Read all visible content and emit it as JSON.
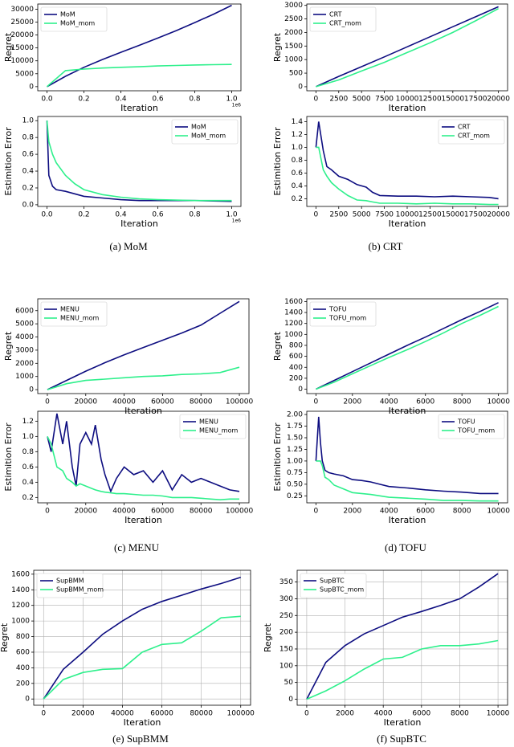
{
  "captions": [
    "(a) MoM",
    "(b) CRT",
    "(c) MENU",
    "(d) TOFU",
    "(e) SupBMM",
    "(f) SupBTC"
  ],
  "chart_data": [
    {
      "type": "line",
      "ylabel": "Regret",
      "xlabel": "Iteration",
      "x_offset_label": "1e6",
      "legend": "upper left",
      "grid": false,
      "x": [
        0,
        0.1,
        0.2,
        0.3,
        0.4,
        0.5,
        0.6,
        0.7,
        0.8,
        0.9,
        1.0
      ],
      "series": [
        {
          "name": "MoM",
          "color": "#0d0d80",
          "values": [
            0,
            4000,
            7500,
            10500,
            13300,
            16000,
            18800,
            21700,
            24800,
            28000,
            31500
          ]
        },
        {
          "name": "MoM_mom",
          "color": "#2ef08c",
          "values": [
            0,
            6200,
            6800,
            7200,
            7500,
            7700,
            8000,
            8200,
            8400,
            8500,
            8600
          ]
        }
      ],
      "xlim": [
        -0.05,
        1.05
      ],
      "xticks": [
        {
          "value": 0,
          "label": "0.0"
        },
        0.2,
        0.4,
        0.6,
        0.8,
        {
          "value": 1,
          "label": "1.0"
        }
      ],
      "ylim": [
        -1600,
        32000
      ],
      "yticks": [
        0,
        5000,
        10000,
        15000,
        20000,
        25000,
        30000
      ]
    },
    {
      "type": "line",
      "ylabel": "Estimition Error",
      "xlabel": "Iteration",
      "x_offset_label": "1e6",
      "legend": "upper right",
      "grid": false,
      "x": [
        0,
        0.01,
        0.03,
        0.05,
        0.1,
        0.15,
        0.2,
        0.3,
        0.4,
        0.5,
        0.6,
        0.8,
        1.0
      ],
      "series": [
        {
          "name": "MoM",
          "color": "#0d0d80",
          "values": [
            1.0,
            0.35,
            0.22,
            0.18,
            0.16,
            0.13,
            0.1,
            0.08,
            0.06,
            0.05,
            0.05,
            0.05,
            0.04
          ]
        },
        {
          "name": "MoM_mom",
          "color": "#2ef08c",
          "values": [
            1.0,
            0.75,
            0.6,
            0.5,
            0.35,
            0.25,
            0.18,
            0.12,
            0.09,
            0.07,
            0.06,
            0.05,
            0.05
          ]
        }
      ],
      "xlim": [
        -0.05,
        1.05
      ],
      "xticks": [
        {
          "value": 0,
          "label": "0.0"
        },
        0.2,
        0.4,
        0.6,
        0.8,
        {
          "value": 1,
          "label": "1.0"
        }
      ],
      "ylim": [
        -0.02,
        1.05
      ],
      "yticks": [
        {
          "value": 0,
          "label": "0.0"
        },
        0.2,
        0.4,
        0.6,
        0.8,
        {
          "value": 1,
          "label": "1.0"
        }
      ]
    },
    {
      "type": "line",
      "ylabel": "Regret",
      "xlabel": "Iteration",
      "legend": "upper left",
      "grid": false,
      "x": [
        0,
        2500,
        5000,
        7500,
        10000,
        12500,
        15000,
        17500,
        20000
      ],
      "series": [
        {
          "name": "CRT",
          "color": "#0d0d80",
          "values": [
            0,
            380,
            740,
            1100,
            1470,
            1840,
            2210,
            2580,
            2950
          ]
        },
        {
          "name": "CRT_mom",
          "color": "#2ef08c",
          "values": [
            0,
            250,
            580,
            900,
            1260,
            1620,
            2000,
            2430,
            2880
          ]
        }
      ],
      "xlim": [
        -1000,
        21000
      ],
      "xticks": [
        0,
        2500,
        5000,
        7500,
        10000,
        12500,
        15000,
        17500,
        20000
      ],
      "ylim": [
        -150,
        3050
      ],
      "yticks": [
        0,
        500,
        1000,
        1500,
        2000,
        2500,
        3000
      ]
    },
    {
      "type": "line",
      "ylabel": "Estimition Error",
      "xlabel": "Iteration",
      "legend": "upper right",
      "grid": false,
      "x": [
        0,
        300,
        800,
        1200,
        1700,
        2500,
        3500,
        4500,
        5500,
        6200,
        7000,
        9000,
        11000,
        13000,
        15000,
        17000,
        19000,
        20000
      ],
      "series": [
        {
          "name": "CRT",
          "color": "#0d0d80",
          "values": [
            1.0,
            1.4,
            0.95,
            0.7,
            0.65,
            0.55,
            0.5,
            0.42,
            0.38,
            0.3,
            0.25,
            0.24,
            0.24,
            0.23,
            0.24,
            0.23,
            0.22,
            0.2
          ]
        },
        {
          "name": "CRT_mom",
          "color": "#2ef08c",
          "values": [
            1.0,
            1.0,
            0.65,
            0.55,
            0.45,
            0.35,
            0.25,
            0.18,
            0.17,
            0.15,
            0.13,
            0.13,
            0.12,
            0.13,
            0.12,
            0.12,
            0.11,
            0.11
          ]
        }
      ],
      "xlim": [
        -1000,
        21000
      ],
      "xticks": [
        0,
        2500,
        5000,
        7500,
        10000,
        12500,
        15000,
        17500,
        20000
      ],
      "ylim": [
        0.08,
        1.48
      ],
      "yticks": [
        0.2,
        0.4,
        0.6,
        0.8,
        {
          "value": 1,
          "label": "1.0"
        },
        1.2,
        1.4
      ]
    },
    {
      "type": "line",
      "ylabel": "Regret",
      "xlabel": "Iteration",
      "legend": "upper left",
      "grid": false,
      "x": [
        0,
        10000,
        20000,
        30000,
        40000,
        50000,
        60000,
        70000,
        80000,
        90000,
        100000
      ],
      "series": [
        {
          "name": "MENU",
          "color": "#0d0d80",
          "values": [
            0,
            700,
            1400,
            2050,
            2650,
            3200,
            3750,
            4300,
            4900,
            5800,
            6700
          ]
        },
        {
          "name": "MENU_mom",
          "color": "#2ef08c",
          "values": [
            0,
            450,
            700,
            800,
            900,
            1000,
            1050,
            1150,
            1200,
            1300,
            1700
          ]
        }
      ],
      "xlim": [
        -5000,
        105000
      ],
      "xticks": [
        0,
        20000,
        40000,
        60000,
        80000,
        100000
      ],
      "ylim": [
        -300,
        6900
      ],
      "yticks": [
        0,
        1000,
        2000,
        3000,
        4000,
        5000,
        6000
      ]
    },
    {
      "type": "line",
      "ylabel": "Estimition Error",
      "xlabel": "Iteration",
      "legend": "upper right",
      "grid": false,
      "x": [
        0,
        2000,
        5000,
        8000,
        10000,
        13000,
        15000,
        17000,
        20000,
        23000,
        25000,
        28000,
        30000,
        33000,
        36000,
        40000,
        45000,
        50000,
        55000,
        60000,
        65000,
        70000,
        75000,
        80000,
        85000,
        90000,
        95000,
        100000
      ],
      "series": [
        {
          "name": "MENU",
          "color": "#0d0d80",
          "values": [
            1.0,
            0.8,
            1.3,
            0.9,
            1.2,
            0.6,
            0.35,
            0.9,
            1.05,
            0.9,
            1.15,
            0.7,
            0.5,
            0.28,
            0.45,
            0.6,
            0.5,
            0.55,
            0.4,
            0.55,
            0.3,
            0.5,
            0.4,
            0.45,
            0.4,
            0.35,
            0.3,
            0.28
          ]
        },
        {
          "name": "MENU_mom",
          "color": "#2ef08c",
          "values": [
            1.0,
            0.9,
            0.6,
            0.55,
            0.45,
            0.4,
            0.35,
            0.38,
            0.35,
            0.32,
            0.3,
            0.28,
            0.27,
            0.26,
            0.25,
            0.25,
            0.24,
            0.23,
            0.23,
            0.22,
            0.2,
            0.2,
            0.2,
            0.19,
            0.18,
            0.17,
            0.18,
            0.18
          ]
        }
      ],
      "xlim": [
        -5000,
        105000
      ],
      "xticks": [
        0,
        20000,
        40000,
        60000,
        80000,
        100000
      ],
      "ylim": [
        0.13,
        1.33
      ],
      "yticks": [
        0.2,
        0.4,
        0.6,
        0.8,
        {
          "value": 1,
          "label": "1.0"
        },
        1.2
      ]
    },
    {
      "type": "line",
      "ylabel": "Regret",
      "xlabel": "Iteration",
      "legend": "upper left",
      "grid": false,
      "x": [
        0,
        1000,
        2000,
        3000,
        4000,
        5000,
        6000,
        7000,
        8000,
        9000,
        10000
      ],
      "series": [
        {
          "name": "TOFU",
          "color": "#0d0d80",
          "values": [
            0,
            160,
            320,
            480,
            640,
            800,
            950,
            1110,
            1270,
            1420,
            1580
          ]
        },
        {
          "name": "TOFU_mom",
          "color": "#2ef08c",
          "values": [
            0,
            130,
            280,
            430,
            580,
            720,
            870,
            1030,
            1200,
            1350,
            1510
          ]
        }
      ],
      "xlim": [
        -500,
        10500
      ],
      "xticks": [
        0,
        2000,
        4000,
        6000,
        8000,
        10000
      ],
      "ylim": [
        -80,
        1650
      ],
      "yticks": [
        0,
        200,
        400,
        600,
        800,
        1000,
        1200,
        1400,
        1600
      ]
    },
    {
      "type": "line",
      "ylabel": "Estimition Error",
      "xlabel": "Iteration",
      "legend": "upper right",
      "grid": false,
      "x": [
        0,
        150,
        250,
        350,
        500,
        700,
        1000,
        1500,
        2000,
        2500,
        3000,
        3500,
        4000,
        5000,
        6000,
        7000,
        8000,
        9000,
        10000
      ],
      "series": [
        {
          "name": "TOFU",
          "color": "#0d0d80",
          "values": [
            1.0,
            1.95,
            1.4,
            1.0,
            0.8,
            0.75,
            0.72,
            0.68,
            0.6,
            0.58,
            0.55,
            0.5,
            0.45,
            0.42,
            0.38,
            0.35,
            0.33,
            0.3,
            0.3
          ]
        },
        {
          "name": "TOFU_mom",
          "color": "#2ef08c",
          "values": [
            1.0,
            1.0,
            1.0,
            0.9,
            0.65,
            0.6,
            0.48,
            0.4,
            0.32,
            0.3,
            0.28,
            0.25,
            0.22,
            0.2,
            0.18,
            0.15,
            0.15,
            0.14,
            0.14
          ]
        }
      ],
      "xlim": [
        -500,
        10500
      ],
      "xticks": [
        0,
        2000,
        4000,
        6000,
        8000,
        10000
      ],
      "ylim": [
        0.1,
        2.07
      ],
      "yticks": [
        0.25,
        {
          "value": 0.5,
          "label": "0.50"
        },
        0.75,
        {
          "value": 1,
          "label": "1.00"
        },
        1.25,
        {
          "value": 1.5,
          "label": "1.50"
        },
        1.75,
        {
          "value": 2,
          "label": "2.00"
        }
      ]
    },
    {
      "type": "line",
      "ylabel": "Regret",
      "xlabel": "Iteration",
      "legend": "upper left",
      "grid": true,
      "x": [
        0,
        10000,
        20000,
        30000,
        40000,
        50000,
        60000,
        70000,
        80000,
        90000,
        100000
      ],
      "series": [
        {
          "name": "SupBMM",
          "color": "#0d0d80",
          "values": [
            0,
            380,
            600,
            830,
            1000,
            1150,
            1250,
            1330,
            1410,
            1480,
            1560
          ]
        },
        {
          "name": "SupBMM_mom",
          "color": "#2ef08c",
          "values": [
            0,
            250,
            340,
            380,
            390,
            600,
            700,
            720,
            870,
            1040,
            1060
          ]
        }
      ],
      "xlim": [
        -5000,
        105000
      ],
      "xticks": [
        0,
        20000,
        40000,
        60000,
        80000,
        100000
      ],
      "ylim": [
        -80,
        1650
      ],
      "yticks": [
        0,
        200,
        400,
        600,
        800,
        1000,
        1200,
        1400,
        1600
      ]
    },
    {
      "type": "line",
      "ylabel": "Regret",
      "xlabel": "Iteration",
      "legend": "upper left",
      "grid": true,
      "x": [
        0,
        1000,
        2000,
        3000,
        4000,
        5000,
        6000,
        7000,
        8000,
        9000,
        10000
      ],
      "series": [
        {
          "name": "SupBTC",
          "color": "#0d0d80",
          "values": [
            0,
            110,
            160,
            195,
            220,
            245,
            262,
            280,
            300,
            335,
            375
          ]
        },
        {
          "name": "SupBTC_mom",
          "color": "#2ef08c",
          "values": [
            0,
            25,
            55,
            90,
            120,
            125,
            150,
            160,
            160,
            165,
            175
          ]
        }
      ],
      "xlim": [
        -500,
        10500
      ],
      "xticks": [
        0,
        2000,
        4000,
        6000,
        8000,
        10000
      ],
      "ylim": [
        -18,
        385
      ],
      "yticks": [
        0,
        50,
        100,
        150,
        200,
        250,
        300,
        350
      ]
    }
  ]
}
